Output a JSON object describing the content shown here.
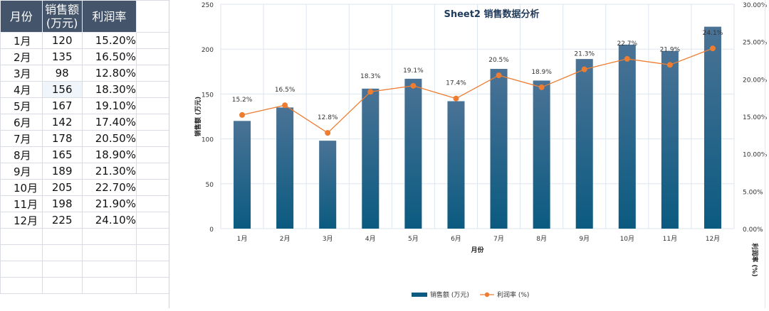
{
  "table": {
    "headers": [
      "月份",
      "销售额\n(万元)",
      "利润率"
    ],
    "header_month": "月份",
    "header_sales_1": "销售额",
    "header_sales_2": "(万元)",
    "header_rate": "利润率",
    "rows": [
      {
        "month": "1月",
        "sales": "120",
        "rate": "15.20%"
      },
      {
        "month": "2月",
        "sales": "135",
        "rate": "16.50%"
      },
      {
        "month": "3月",
        "sales": "98",
        "rate": "12.80%"
      },
      {
        "month": "4月",
        "sales": "156",
        "rate": "18.30%"
      },
      {
        "month": "5月",
        "sales": "167",
        "rate": "19.10%"
      },
      {
        "month": "6月",
        "sales": "142",
        "rate": "17.40%"
      },
      {
        "month": "7月",
        "sales": "178",
        "rate": "20.50%"
      },
      {
        "month": "8月",
        "sales": "165",
        "rate": "18.90%"
      },
      {
        "month": "9月",
        "sales": "189",
        "rate": "21.30%"
      },
      {
        "month": "10月",
        "sales": "205",
        "rate": "22.70%"
      },
      {
        "month": "11月",
        "sales": "198",
        "rate": "21.90%"
      },
      {
        "month": "12月",
        "sales": "225",
        "rate": "24.10%"
      }
    ]
  },
  "chart_data": {
    "type": "bar",
    "title": "Sheet2 销售数据分析",
    "categories": [
      "1月",
      "2月",
      "3月",
      "4月",
      "5月",
      "6月",
      "7月",
      "8月",
      "9月",
      "10月",
      "11月",
      "12月"
    ],
    "series": [
      {
        "name": "销售额 (万元)",
        "type": "bar",
        "axis": "left",
        "values": [
          120,
          135,
          98,
          156,
          167,
          142,
          178,
          165,
          189,
          205,
          198,
          225
        ]
      },
      {
        "name": "利润率 (%)",
        "type": "line",
        "axis": "right",
        "values": [
          15.2,
          16.5,
          12.8,
          18.3,
          19.1,
          17.4,
          20.5,
          18.9,
          21.3,
          22.7,
          21.9,
          24.1
        ],
        "labels": [
          "15.2%",
          "16.5%",
          "12.8%",
          "18.3%",
          "19.1%",
          "17.4%",
          "20.5%",
          "18.9%",
          "21.3%",
          "22.7%",
          "21.9%",
          "24.1%"
        ]
      }
    ],
    "xlabel": "月份",
    "ylabel": "销售额 (万元)",
    "y2label": "利润率 (%)",
    "ylim": [
      0,
      250
    ],
    "yticks": [
      "0",
      "50",
      "100",
      "150",
      "200",
      "250"
    ],
    "y2lim": [
      0,
      30
    ],
    "y2ticks": [
      "0.00%",
      "5.00%",
      "10.00%",
      "15.00%",
      "20.00%",
      "25.00%",
      "30.00%"
    ],
    "legend_position": "bottom",
    "colors": {
      "bar_top": "#4a7396",
      "bar_bottom": "#0b5a80",
      "line": "#ee7d31",
      "grid": "#dde6ef",
      "title": "#1f3a5a"
    }
  }
}
